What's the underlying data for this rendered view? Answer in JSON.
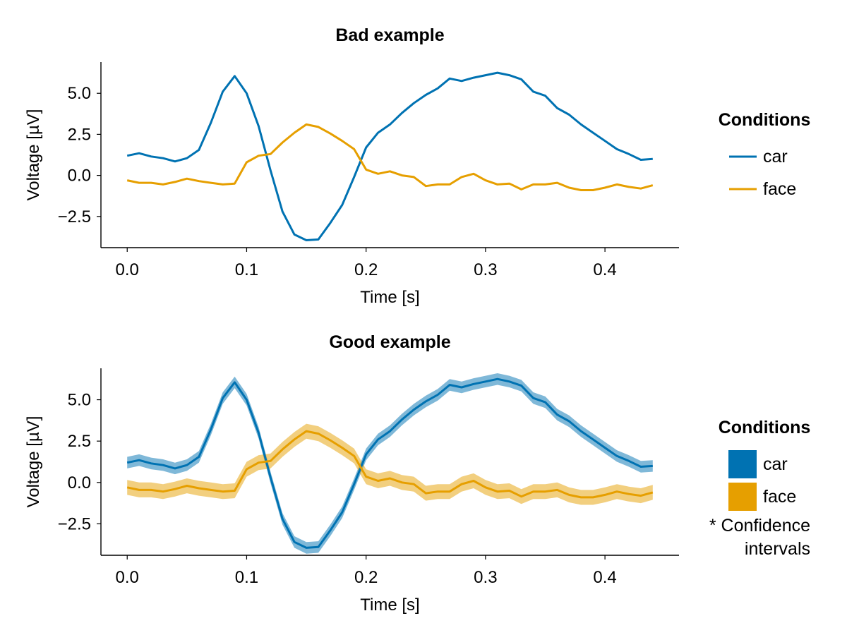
{
  "colors": {
    "car": "#0072B2",
    "face": "#E69F00"
  },
  "chart_data": [
    {
      "type": "line",
      "title": "Bad example",
      "xlabel": "Time [s]",
      "ylabel": "Voltage [µV]",
      "xlim": [
        -0.022,
        0.462
      ],
      "ylim": [
        -4.4,
        6.9
      ],
      "xticks": [
        0.0,
        0.1,
        0.2,
        0.3,
        0.4
      ],
      "xtick_labels": [
        "0.0",
        "0.1",
        "0.2",
        "0.3",
        "0.4"
      ],
      "yticks": [
        -2.5,
        0.0,
        2.5,
        5.0
      ],
      "ytick_labels": [
        "−2.5",
        "0.0",
        "2.5",
        "5.0"
      ],
      "confidence_band": false,
      "legend": {
        "title": "Conditions",
        "position": "right",
        "style": "line",
        "entries": [
          "car",
          "face"
        ]
      },
      "x": [
        0.0,
        0.01,
        0.02,
        0.03,
        0.04,
        0.05,
        0.06,
        0.07,
        0.08,
        0.09,
        0.1,
        0.11,
        0.12,
        0.13,
        0.14,
        0.15,
        0.16,
        0.17,
        0.18,
        0.19,
        0.2,
        0.21,
        0.22,
        0.23,
        0.24,
        0.25,
        0.26,
        0.27,
        0.28,
        0.29,
        0.3,
        0.31,
        0.32,
        0.33,
        0.34,
        0.35,
        0.36,
        0.37,
        0.38,
        0.39,
        0.4,
        0.41,
        0.42,
        0.43,
        0.44
      ],
      "series": [
        {
          "name": "car",
          "values": [
            1.2,
            1.35,
            1.15,
            1.05,
            0.85,
            1.05,
            1.55,
            3.2,
            5.1,
            6.05,
            5.0,
            3.0,
            0.3,
            -2.2,
            -3.6,
            -3.95,
            -3.9,
            -2.9,
            -1.8,
            -0.1,
            1.7,
            2.6,
            3.1,
            3.8,
            4.4,
            4.9,
            5.3,
            5.9,
            5.75,
            5.95,
            6.1,
            6.25,
            6.1,
            5.85,
            5.1,
            4.85,
            4.1,
            3.7,
            3.1,
            2.6,
            2.1,
            1.6,
            1.3,
            0.95,
            1.0
          ]
        },
        {
          "name": "face",
          "values": [
            -0.3,
            -0.45,
            -0.45,
            -0.55,
            -0.4,
            -0.2,
            -0.35,
            -0.45,
            -0.55,
            -0.5,
            0.8,
            1.2,
            1.3,
            2.0,
            2.6,
            3.1,
            2.95,
            2.55,
            2.1,
            1.6,
            0.35,
            0.1,
            0.25,
            0.0,
            -0.1,
            -0.65,
            -0.55,
            -0.55,
            -0.1,
            0.1,
            -0.3,
            -0.55,
            -0.5,
            -0.85,
            -0.55,
            -0.55,
            -0.45,
            -0.75,
            -0.9,
            -0.9,
            -0.75,
            -0.55,
            -0.7,
            -0.8,
            -0.6
          ]
        }
      ]
    },
    {
      "type": "line",
      "title": "Good example",
      "xlabel": "Time [s]",
      "ylabel": "Voltage [µV]",
      "xlim": [
        -0.022,
        0.462
      ],
      "ylim": [
        -4.4,
        6.9
      ],
      "xticks": [
        0.0,
        0.1,
        0.2,
        0.3,
        0.4
      ],
      "xtick_labels": [
        "0.0",
        "0.1",
        "0.2",
        "0.3",
        "0.4"
      ],
      "yticks": [
        -2.5,
        0.0,
        2.5,
        5.0
      ],
      "ytick_labels": [
        "−2.5",
        "0.0",
        "2.5",
        "5.0"
      ],
      "confidence_band": true,
      "band_halfwidth": {
        "car": 0.35,
        "face": 0.45
      },
      "legend": {
        "title": "Conditions",
        "position": "right",
        "style": "patch",
        "entries": [
          "car",
          "face"
        ],
        "note_lines": [
          "* Confidence",
          "intervals"
        ]
      },
      "x": [
        0.0,
        0.01,
        0.02,
        0.03,
        0.04,
        0.05,
        0.06,
        0.07,
        0.08,
        0.09,
        0.1,
        0.11,
        0.12,
        0.13,
        0.14,
        0.15,
        0.16,
        0.17,
        0.18,
        0.19,
        0.2,
        0.21,
        0.22,
        0.23,
        0.24,
        0.25,
        0.26,
        0.27,
        0.28,
        0.29,
        0.3,
        0.31,
        0.32,
        0.33,
        0.34,
        0.35,
        0.36,
        0.37,
        0.38,
        0.39,
        0.4,
        0.41,
        0.42,
        0.43,
        0.44
      ],
      "series": [
        {
          "name": "car",
          "values": [
            1.2,
            1.35,
            1.15,
            1.05,
            0.85,
            1.05,
            1.55,
            3.2,
            5.1,
            6.05,
            5.0,
            3.0,
            0.3,
            -2.2,
            -3.6,
            -3.95,
            -3.9,
            -2.9,
            -1.8,
            -0.1,
            1.7,
            2.6,
            3.1,
            3.8,
            4.4,
            4.9,
            5.3,
            5.9,
            5.75,
            5.95,
            6.1,
            6.25,
            6.1,
            5.85,
            5.1,
            4.85,
            4.1,
            3.7,
            3.1,
            2.6,
            2.1,
            1.6,
            1.3,
            0.95,
            1.0
          ]
        },
        {
          "name": "face",
          "values": [
            -0.3,
            -0.45,
            -0.45,
            -0.55,
            -0.4,
            -0.2,
            -0.35,
            -0.45,
            -0.55,
            -0.5,
            0.8,
            1.2,
            1.3,
            2.0,
            2.6,
            3.1,
            2.95,
            2.55,
            2.1,
            1.6,
            0.35,
            0.1,
            0.25,
            0.0,
            -0.1,
            -0.65,
            -0.55,
            -0.55,
            -0.1,
            0.1,
            -0.3,
            -0.55,
            -0.5,
            -0.85,
            -0.55,
            -0.55,
            -0.45,
            -0.75,
            -0.9,
            -0.9,
            -0.75,
            -0.55,
            -0.7,
            -0.8,
            -0.6
          ]
        }
      ]
    }
  ]
}
